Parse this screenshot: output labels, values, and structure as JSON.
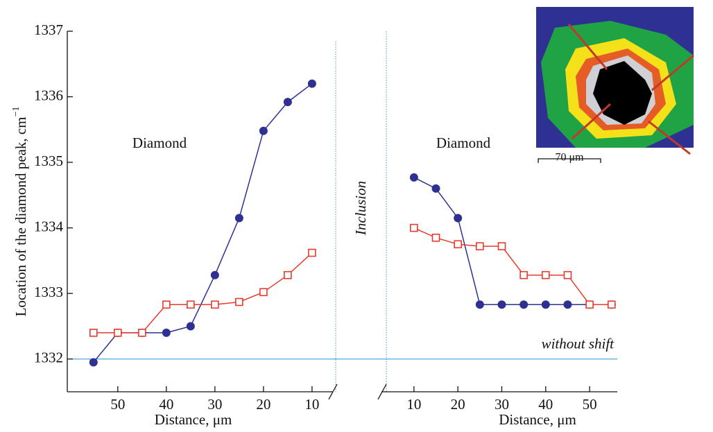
{
  "y_label": "Location of the diamond peak, cm",
  "y_label_sup": "−1",
  "inclusion_label": "Inclusion",
  "reference": {
    "value": 1332,
    "label": "without shift"
  },
  "scale_bar_label": "70 μm",
  "chart_data": [
    {
      "type": "line",
      "annotation": "Diamond",
      "x_label": "Distance, μm",
      "x": [
        55,
        50,
        45,
        40,
        35,
        30,
        25,
        20,
        15,
        10
      ],
      "xlim": [
        60.4,
        5.7
      ],
      "xticks": [
        50,
        40,
        30,
        20,
        10
      ],
      "ylim": [
        1331.5,
        1337
      ],
      "yticks": [
        1332,
        1333,
        1334,
        1335,
        1336,
        1337
      ],
      "series": [
        {
          "color": "#2e3192",
          "marker": "circle",
          "values": [
            1331.95,
            1332.4,
            1332.4,
            1332.4,
            1332.5,
            1333.28,
            1334.15,
            1335.48,
            1335.92,
            1336.2
          ]
        },
        {
          "color": "#e8392d",
          "marker": "square",
          "values": [
            1332.4,
            1332.4,
            1332.4,
            1332.83,
            1332.83,
            1332.83,
            1332.87,
            1333.02,
            1333.28,
            1333.62
          ]
        }
      ]
    },
    {
      "type": "line",
      "annotation": "Diamond",
      "x_label": "Distance, μm",
      "x": [
        10,
        15,
        20,
        25,
        30,
        35,
        40,
        45,
        50,
        55
      ],
      "xlim": [
        2.6,
        56.3
      ],
      "xticks": [
        10,
        20,
        30,
        40,
        50
      ],
      "ylim": [
        1331.5,
        1337
      ],
      "series": [
        {
          "color": "#2e3192",
          "marker": "circle",
          "values": [
            1334.77,
            1334.6,
            1334.15,
            1332.83,
            1332.83,
            1332.83,
            1332.83,
            1332.83,
            1332.83,
            1332.83
          ]
        },
        {
          "color": "#e8392d",
          "marker": "square",
          "values": [
            1334.0,
            1333.85,
            1333.75,
            1333.72,
            1333.72,
            1333.28,
            1333.28,
            1333.28,
            1332.83,
            1332.83
          ]
        }
      ]
    }
  ]
}
